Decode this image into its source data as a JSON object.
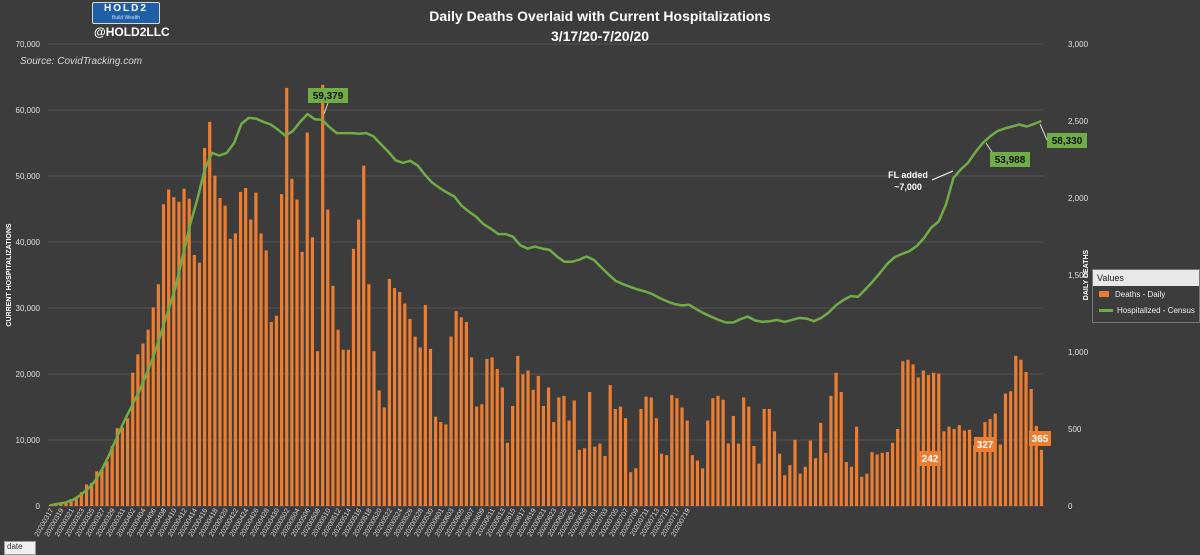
{
  "header": {
    "logo_text": "HOLD2",
    "logo_subtext": "Build Wealth",
    "handle": "@HOLD2LLC",
    "source": "Source: CovidTracking.com",
    "title_line1": "Daily Deaths Overlaid with Current Hospitalizations",
    "title_line2": "3/17/20-7/20/20"
  },
  "legend": {
    "header": "Values",
    "bar_label": "Deaths - Daily",
    "line_label": "Hospitalized - Census"
  },
  "filter_button": {
    "label": "date"
  },
  "colors": {
    "background": "#3c3c3c",
    "bar": "#ed7d31",
    "line": "#70ad47",
    "grid": "#555555"
  },
  "chart_data": {
    "type": "bar+line",
    "title": "Daily Deaths Overlaid with Current Hospitalizations 3/17/20-7/20/20",
    "left_axis_label": "CURRENT HOSPITALIZATIONS",
    "right_axis_label": "DAILY DEATHS",
    "left_range": [
      0,
      70000
    ],
    "right_range": [
      0,
      3000
    ],
    "left_ticks": [
      "0",
      "10,000",
      "20,000",
      "30,000",
      "40,000",
      "50,000",
      "60,000",
      "70,000"
    ],
    "right_ticks": [
      "0",
      "500",
      "1,000",
      "1,500",
      "2,000",
      "2,500",
      "3,000"
    ],
    "x_tick_labels": [
      "20200317",
      "20200319",
      "20200321",
      "20200323",
      "20200325",
      "20200327",
      "20200329",
      "20200331",
      "20200402",
      "20200404",
      "20200406",
      "20200408",
      "20200410",
      "20200412",
      "20200414",
      "20200416",
      "20200418",
      "20200420",
      "20200422",
      "20200424",
      "20200426",
      "20200428",
      "20200430",
      "20200502",
      "20200504",
      "20200506",
      "20200508",
      "20200510",
      "20200512",
      "20200514",
      "20200516",
      "20200518",
      "20200520",
      "20200522",
      "20200524",
      "20200526",
      "20200528",
      "20200530",
      "20200601",
      "20200603",
      "20200605",
      "20200607",
      "20200609",
      "20200611",
      "20200613",
      "20200615",
      "20200617",
      "20200619",
      "20200621",
      "20200623",
      "20200625",
      "20200627",
      "20200629",
      "20200701",
      "20200703",
      "20200705",
      "20200707",
      "20200709",
      "20200711",
      "20200713",
      "20200715",
      "20200717",
      "20200719"
    ],
    "series": [
      {
        "name": "Deaths - Daily",
        "axis": "right",
        "type": "bar",
        "values": [
          10,
          15,
          20,
          30,
          45,
          60,
          90,
          140,
          150,
          225,
          235,
          290,
          390,
          505,
          510,
          570,
          865,
          985,
          1055,
          1145,
          1290,
          1440,
          1960,
          2055,
          2005,
          1975,
          2060,
          1995,
          1630,
          1580,
          2325,
          2495,
          2145,
          2000,
          1950,
          1735,
          1770,
          2040,
          2065,
          1860,
          2035,
          1770,
          1660,
          1195,
          1235,
          2025,
          2715,
          2125,
          1990,
          1650,
          2425,
          1745,
          1005,
          2735,
          1925,
          1430,
          1145,
          1015,
          1015,
          1670,
          1860,
          2210,
          1440,
          1005,
          750,
          640,
          1475,
          1415,
          1390,
          1315,
          1215,
          1100,
          1030,
          1305,
          1020,
          580,
          545,
          530,
          1100,
          1265,
          1225,
          1195,
          965,
          645,
          660,
          955,
          965,
          890,
          770,
          410,
          650,
          975,
          855,
          880,
          755,
          845,
          650,
          770,
          545,
          705,
          715,
          555,
          685,
          365,
          375,
          740,
          385,
          405,
          325,
          785,
          630,
          645,
          570,
          220,
          245,
          630,
          710,
          705,
          570,
          340,
          330,
          720,
          700,
          640,
          555,
          330,
          295,
          245,
          555,
          700,
          715,
          690,
          405,
          585,
          405,
          705,
          645,
          390,
          275,
          630,
          630,
          485,
          340,
          200,
          265,
          430,
          210,
          255,
          425,
          310,
          540,
          345,
          715,
          865,
          740,
          285,
          255,
          515,
          190,
          210,
          350,
          335,
          345,
          350,
          410,
          500,
          940,
          950,
          920,
          835,
          880,
          850,
          865,
          860,
          485,
          515,
          500,
          525,
          490,
          495,
          395,
          355,
          545,
          565,
          600,
          400,
          730,
          745,
          975,
          950,
          870,
          760,
          520,
          365
        ]
      },
      {
        "name": "Hospitalized - Census",
        "axis": "left",
        "type": "line",
        "values": [
          100,
          350,
          500,
          900,
          1600,
          2500,
          3700,
          5500,
          7800,
          10300,
          12800,
          15000,
          17200,
          19800,
          22600,
          26000,
          29500,
          33000,
          37800,
          42600,
          46500,
          51000,
          53500,
          53100,
          53500,
          55000,
          57900,
          58800,
          58700,
          58200,
          57800,
          57000,
          56100,
          56800,
          58200,
          59379,
          58600,
          58500,
          57400,
          56500,
          56500,
          56500,
          56400,
          56500,
          56000,
          54800,
          53700,
          52400,
          52000,
          52300,
          51600,
          50200,
          49000,
          48200,
          47500,
          46900,
          45500,
          44600,
          43800,
          42700,
          42000,
          41200,
          41200,
          40800,
          39500,
          39000,
          39300,
          39000,
          38800,
          37800,
          37000,
          37000,
          37300,
          37800,
          37300,
          36200,
          35100,
          34100,
          33600,
          33200,
          32800,
          32500,
          32100,
          31500,
          31000,
          30600,
          30400,
          30500,
          29800,
          29200,
          28700,
          28200,
          27800,
          27800,
          28300,
          28700,
          28100,
          27900,
          28000,
          28200,
          27900,
          28200,
          28500,
          28400,
          28000,
          28500,
          29300,
          30400,
          31200,
          31800,
          31700,
          32800,
          34000,
          35300,
          36700,
          37700,
          38200,
          38600,
          39400,
          40600,
          42200,
          43100,
          45700,
          49700,
          51000,
          52000,
          53600,
          55000,
          56000,
          56800,
          57200,
          57500,
          57800,
          57500,
          57900,
          58330
        ]
      }
    ],
    "annotations": [
      {
        "text": "59,379",
        "target_series": "Hospitalized - Census",
        "value": 59379
      },
      {
        "text": "53,988",
        "target_series": "Hospitalized - Census",
        "value": 53988
      },
      {
        "text": "58,330",
        "target_series": "Hospitalized - Census",
        "value": 58330
      },
      {
        "text": "242",
        "target_series": "Deaths - Daily",
        "value": 242
      },
      {
        "text": "327",
        "target_series": "Deaths - Daily",
        "value": 327
      },
      {
        "text": "365",
        "target_series": "Deaths - Daily",
        "value": 365
      },
      {
        "text": "FL added",
        "note": true
      },
      {
        "text": "~7,000",
        "note": true
      }
    ]
  }
}
